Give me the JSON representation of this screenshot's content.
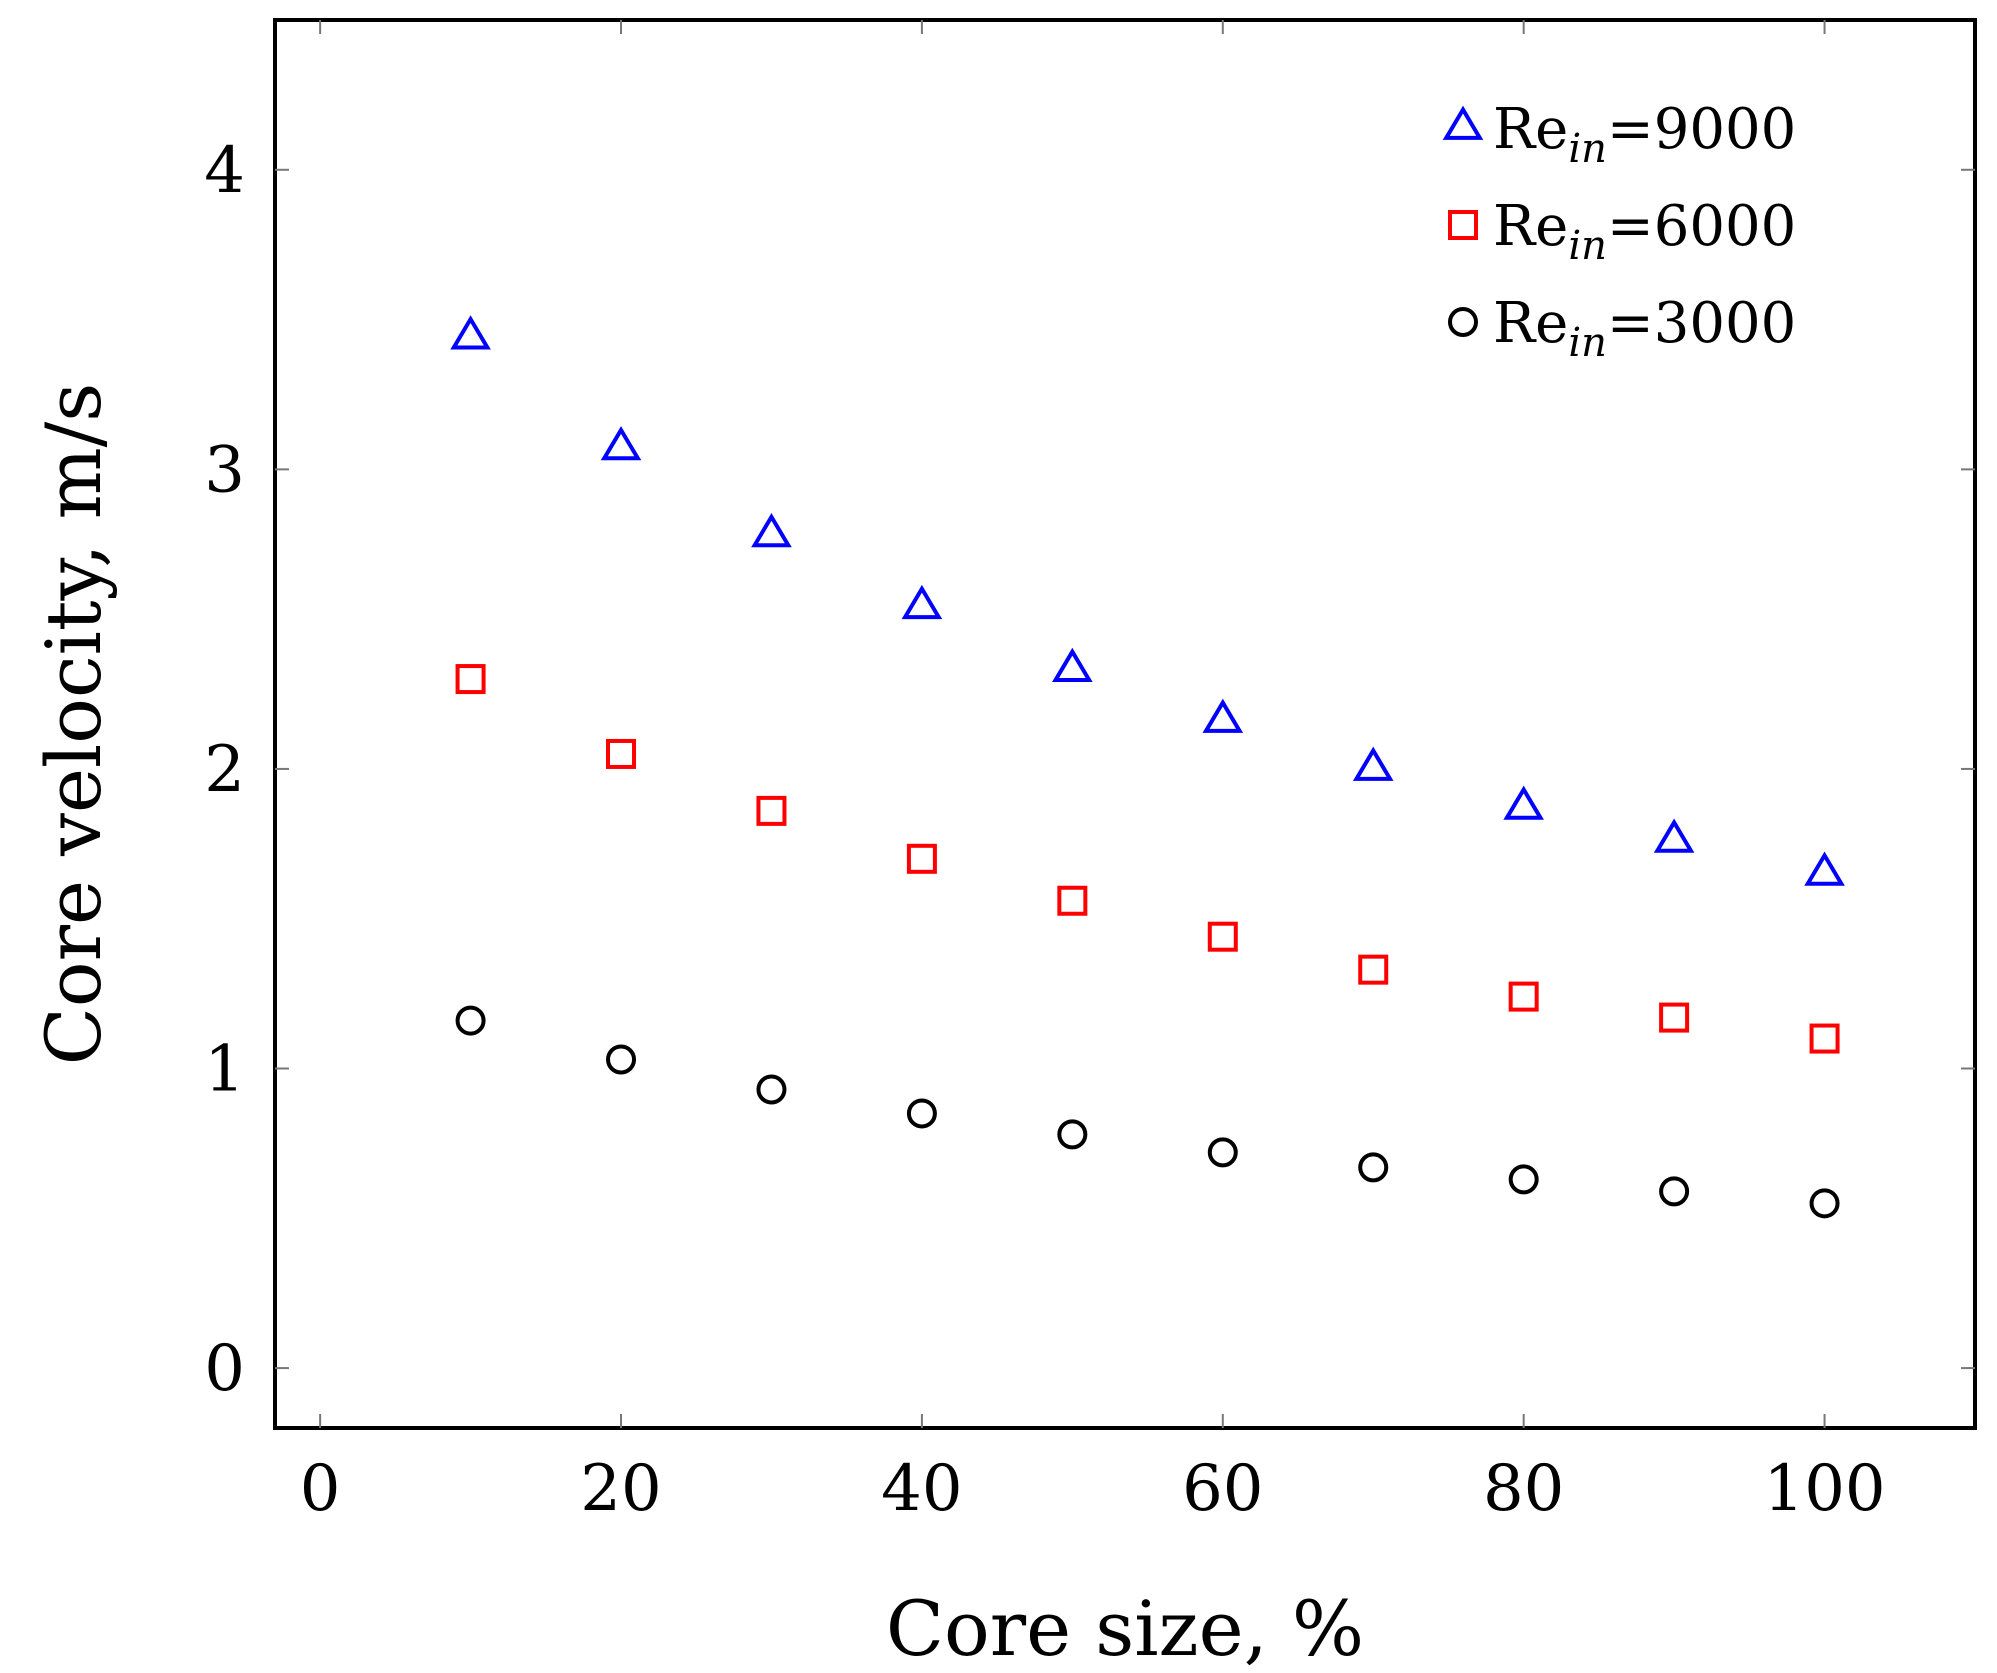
{
  "chart_data": {
    "type": "scatter",
    "title": "",
    "xlabel": "Core size, %",
    "ylabel": "Core velocity, m/s",
    "xlim": [
      -3,
      110
    ],
    "ylim": [
      -0.2,
      4.5
    ],
    "xticks": [
      0,
      20,
      40,
      60,
      80,
      100
    ],
    "yticks": [
      0,
      1,
      2,
      3,
      4
    ],
    "xtick_labels": [
      "0",
      "20",
      "40",
      "60",
      "80",
      "100"
    ],
    "ytick_labels": [
      "0",
      "1",
      "2",
      "3",
      "4"
    ],
    "grid": false,
    "legend_position": "top-right",
    "x": [
      10,
      20,
      30,
      40,
      50,
      60,
      70,
      80,
      90,
      100
    ],
    "series": [
      {
        "name": "Re_in=9000",
        "legend_base": "Re",
        "legend_sub": "in",
        "legend_value": "=9000",
        "marker": "triangle",
        "color": "#0000ff",
        "values": [
          3.44,
          3.07,
          2.78,
          2.54,
          2.33,
          2.16,
          2.0,
          1.87,
          1.76,
          1.65
        ]
      },
      {
        "name": "Re_in=6000",
        "legend_base": "Re",
        "legend_sub": "in",
        "legend_value": "=6000",
        "marker": "square",
        "color": "#ff0000",
        "values": [
          2.3,
          2.05,
          1.86,
          1.7,
          1.56,
          1.44,
          1.33,
          1.24,
          1.17,
          1.1
        ]
      },
      {
        "name": "Re_in=3000",
        "legend_base": "Re",
        "legend_sub": "in",
        "legend_value": "=3000",
        "marker": "circle",
        "color": "#000000",
        "values": [
          1.16,
          1.03,
          0.93,
          0.85,
          0.78,
          0.72,
          0.67,
          0.63,
          0.59,
          0.55
        ]
      }
    ]
  }
}
